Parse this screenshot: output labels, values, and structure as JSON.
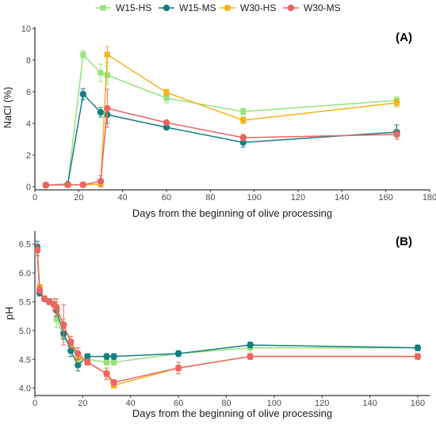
{
  "legend": [
    {
      "name": "W15-HS",
      "color": "#98e27e",
      "marker": "square"
    },
    {
      "name": "W15-MS",
      "color": "#137f83",
      "marker": "circle"
    },
    {
      "name": "W30-HS",
      "color": "#f1b51c",
      "marker": "square"
    },
    {
      "name": "W30-MS",
      "color": "#ee6363",
      "marker": "circle"
    }
  ],
  "chart_data": [
    {
      "type": "line",
      "panel_label": "(A)",
      "xlabel": "Days from the beginning of olive processing",
      "ylabel": "NaCl (%)",
      "xlim": [
        0,
        180
      ],
      "ylim": [
        0,
        10
      ],
      "xticks": [
        0,
        20,
        40,
        60,
        80,
        100,
        120,
        140,
        160,
        180
      ],
      "yticks": [
        0,
        2,
        4,
        6,
        8,
        10
      ],
      "grid": false,
      "series": [
        {
          "name": "W15-HS",
          "x": [
            5,
            15,
            22,
            30,
            33,
            60,
            95,
            165
          ],
          "y": [
            0.1,
            0.15,
            8.35,
            7.2,
            7.05,
            5.6,
            4.75,
            5.45
          ],
          "err": [
            0.05,
            0.05,
            0.25,
            0.55,
            0.6,
            0.3,
            0.2,
            0.25
          ]
        },
        {
          "name": "W15-MS",
          "x": [
            5,
            15,
            22,
            30,
            33,
            60,
            95,
            165
          ],
          "y": [
            0.1,
            0.15,
            5.85,
            4.7,
            4.55,
            3.75,
            2.8,
            3.45
          ],
          "err": [
            0.05,
            0.05,
            0.35,
            0.3,
            0.55,
            0.15,
            0.3,
            0.45
          ]
        },
        {
          "name": "W30-HS",
          "x": [
            5,
            15,
            22,
            30,
            33,
            60,
            95,
            165
          ],
          "y": [
            0.1,
            0.12,
            0.12,
            0.15,
            8.35,
            5.95,
            4.2,
            5.3
          ],
          "err": [
            0.05,
            0.05,
            0.05,
            0.1,
            0.5,
            0.2,
            0.2,
            0.25
          ]
        },
        {
          "name": "W30-MS",
          "x": [
            5,
            15,
            22,
            30,
            33,
            60,
            95,
            165
          ],
          "y": [
            0.1,
            0.12,
            0.12,
            0.35,
            4.95,
            4.05,
            3.1,
            3.3
          ],
          "err": [
            0.05,
            0.05,
            0.05,
            0.35,
            1.2,
            0.1,
            0.2,
            0.3
          ]
        }
      ]
    },
    {
      "type": "line",
      "panel_label": "(B)",
      "xlabel": "Days from the beginning of olive processing",
      "ylabel": "pH",
      "xlim": [
        0,
        165
      ],
      "ylim": [
        3.9,
        6.7
      ],
      "xticks": [
        0,
        20,
        40,
        60,
        80,
        100,
        120,
        140,
        160
      ],
      "yticks": [
        4.0,
        4.5,
        5.0,
        5.5,
        6.0,
        6.5
      ],
      "grid": false,
      "series": [
        {
          "name": "W15-HS",
          "x": [
            1,
            2,
            4,
            6,
            8,
            9,
            12,
            15,
            18,
            22,
            30,
            33,
            60,
            90,
            160
          ],
          "y": [
            6.4,
            5.7,
            5.55,
            5.5,
            5.45,
            5.2,
            4.9,
            4.75,
            4.5,
            4.5,
            4.45,
            4.45,
            4.6,
            4.7,
            4.7
          ],
          "err": [
            0.1,
            0.05,
            0.05,
            0.05,
            0.1,
            0.15,
            0.1,
            0.1,
            0.1,
            0.05,
            0.05,
            0.05,
            0.05,
            0.1,
            0.05
          ]
        },
        {
          "name": "W15-MS",
          "x": [
            1,
            2,
            4,
            6,
            8,
            9,
            12,
            15,
            18,
            22,
            30,
            33,
            60,
            90,
            160
          ],
          "y": [
            6.45,
            5.65,
            5.55,
            5.5,
            5.45,
            5.35,
            4.95,
            4.65,
            4.4,
            4.55,
            4.55,
            4.55,
            4.6,
            4.75,
            4.7
          ],
          "err": [
            0.1,
            0.05,
            0.05,
            0.05,
            0.05,
            0.1,
            0.1,
            0.1,
            0.1,
            0.05,
            0.05,
            0.05,
            0.05,
            0.05,
            0.05
          ]
        },
        {
          "name": "W30-HS",
          "x": [
            1,
            2,
            4,
            6,
            8,
            9,
            12,
            15,
            18,
            22,
            30,
            33,
            60,
            90,
            160
          ],
          "y": [
            6.4,
            5.75,
            5.55,
            5.5,
            5.45,
            5.4,
            5.1,
            4.8,
            4.55,
            4.45,
            4.25,
            4.05,
            4.35,
            4.55,
            4.55
          ],
          "err": [
            0.1,
            0.05,
            0.05,
            0.05,
            0.05,
            0.1,
            0.1,
            0.1,
            0.1,
            0.05,
            0.05,
            0.05,
            0.05,
            0.05,
            0.05
          ]
        },
        {
          "name": "W30-MS",
          "x": [
            1,
            2,
            4,
            6,
            8,
            9,
            12,
            15,
            18,
            22,
            30,
            33,
            60,
            90,
            160
          ],
          "y": [
            6.4,
            5.7,
            5.55,
            5.5,
            5.45,
            5.4,
            5.1,
            4.8,
            4.6,
            4.45,
            4.25,
            4.1,
            4.35,
            4.55,
            4.55
          ],
          "err": [
            0.1,
            0.05,
            0.05,
            0.05,
            0.1,
            0.15,
            0.35,
            0.1,
            0.1,
            0.05,
            0.1,
            0.05,
            0.1,
            0.05,
            0.05
          ]
        }
      ]
    }
  ]
}
